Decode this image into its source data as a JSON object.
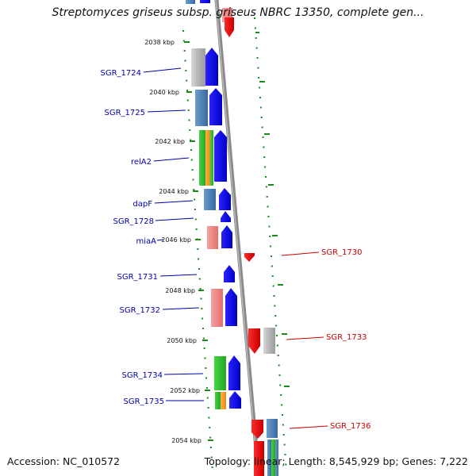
{
  "title": "Streptomyces griseus subsp. griseus NBRC 13350, complete gen...",
  "footer": {
    "accession": "Accession: NC_010572",
    "summary": "Topology: linear; Length: 8,545,929 bp; Genes: 7,222"
  },
  "kbp_labels": [
    "2038 kbp",
    "2040 kbp",
    "2042 kbp",
    "2044 kbp",
    "2046 kbp",
    "2048 kbp",
    "2050 kbp",
    "2052 kbp",
    "2054 kbp"
  ],
  "genes_left": [
    "SGR_1724",
    "SGR_1725",
    "relA2",
    "dapF",
    "SGR_1728",
    "miaA",
    "SGR_1731",
    "SGR_1732",
    "SGR_1734",
    "SGR_1735"
  ],
  "genes_right": [
    "SGR_1730",
    "SGR_1733",
    "SGR_1736"
  ],
  "colors": {
    "forward_cds": "#0a00e0",
    "reverse_cds": "#ee0000",
    "forward_label": "#0000aa",
    "reverse_label": "#cc0000",
    "kbp_tick": "#1a8a1a",
    "backbone": "#8a8a8a",
    "cog_grey": "#b9b9b9",
    "cog_steel": "#4f83b7",
    "cog_green": "#2ec02e",
    "cog_orange": "#f59a1f",
    "cog_pink": "#ee8383"
  }
}
